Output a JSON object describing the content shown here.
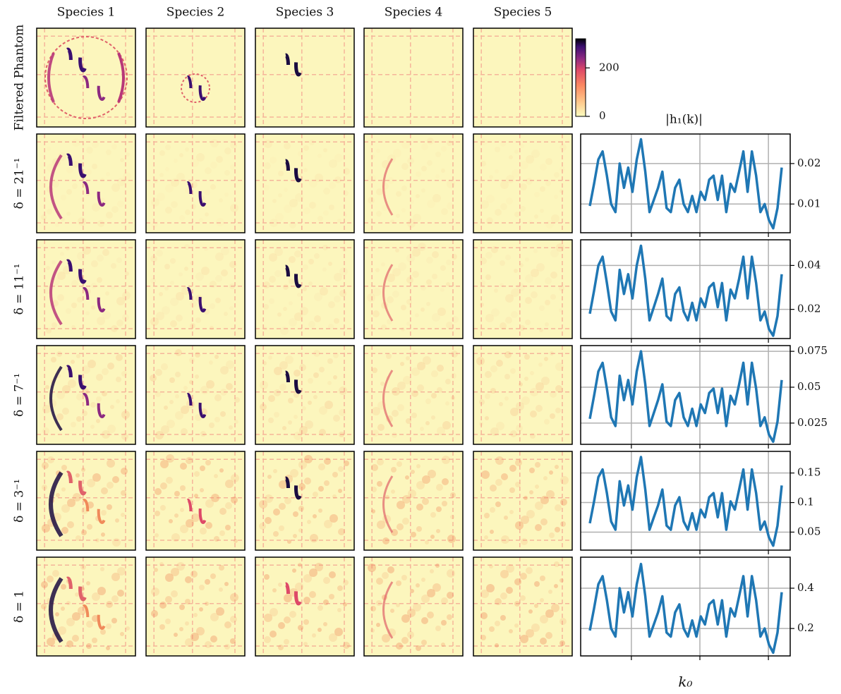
{
  "chart_data": [
    {
      "type": "heatmap",
      "columns": [
        "Species 1",
        "Species 2",
        "Species 3",
        "Species 4",
        "Species 5"
      ],
      "rows": [
        "Filtered Phantom",
        "δ = 21⁻¹",
        "δ = 11⁻¹",
        "δ = 7⁻¹",
        "δ = 3⁻¹",
        "δ = 1"
      ],
      "colorbar": {
        "lim": [
          0,
          320
        ],
        "ticks": [
          0,
          200
        ]
      }
    },
    {
      "type": "line",
      "title": "|h₁(k)|",
      "color": "#1f77b4",
      "grid": true,
      "ylim": [
        0.0029,
        0.0273
      ],
      "yticks": [
        0.01,
        0.02
      ],
      "values": [
        0.0095,
        0.015,
        0.021,
        0.023,
        0.017,
        0.01,
        0.008,
        0.02,
        0.014,
        0.019,
        0.013,
        0.021,
        0.026,
        0.018,
        0.008,
        0.011,
        0.014,
        0.018,
        0.009,
        0.008,
        0.014,
        0.016,
        0.01,
        0.008,
        0.012,
        0.008,
        0.013,
        0.011,
        0.016,
        0.017,
        0.011,
        0.017,
        0.008,
        0.015,
        0.013,
        0.018,
        0.023,
        0.013,
        0.023,
        0.017,
        0.008,
        0.01,
        0.006,
        0.004,
        0.009,
        0.019
      ]
    },
    {
      "type": "line",
      "color": "#1f77b4",
      "grid": true,
      "ylim": [
        0.0067,
        0.0517
      ],
      "yticks": [
        0.02,
        0.04
      ],
      "values": [
        0.018,
        0.0285,
        0.04,
        0.044,
        0.032,
        0.019,
        0.015,
        0.038,
        0.027,
        0.036,
        0.025,
        0.04,
        0.049,
        0.034,
        0.015,
        0.021,
        0.027,
        0.034,
        0.017,
        0.015,
        0.027,
        0.03,
        0.019,
        0.015,
        0.023,
        0.015,
        0.025,
        0.021,
        0.03,
        0.032,
        0.021,
        0.032,
        0.015,
        0.029,
        0.025,
        0.034,
        0.044,
        0.025,
        0.044,
        0.032,
        0.015,
        0.019,
        0.011,
        0.008,
        0.017,
        0.036
      ]
    },
    {
      "type": "line",
      "color": "#1f77b4",
      "grid": true,
      "ylim": [
        0.0102,
        0.079
      ],
      "yticks": [
        0.025,
        0.05,
        0.075
      ],
      "values": [
        0.028,
        0.044,
        0.061,
        0.067,
        0.049,
        0.029,
        0.023,
        0.058,
        0.041,
        0.055,
        0.038,
        0.061,
        0.075,
        0.052,
        0.023,
        0.032,
        0.041,
        0.052,
        0.026,
        0.023,
        0.041,
        0.046,
        0.029,
        0.023,
        0.035,
        0.023,
        0.038,
        0.032,
        0.046,
        0.049,
        0.032,
        0.049,
        0.023,
        0.044,
        0.038,
        0.052,
        0.067,
        0.038,
        0.067,
        0.049,
        0.023,
        0.029,
        0.017,
        0.012,
        0.026,
        0.055
      ]
    },
    {
      "type": "line",
      "color": "#1f77b4",
      "grid": true,
      "ylim": [
        0.0195,
        0.1866
      ],
      "yticks": [
        0.05,
        0.1,
        0.15
      ],
      "values": [
        0.065,
        0.102,
        0.143,
        0.156,
        0.116,
        0.068,
        0.054,
        0.136,
        0.095,
        0.129,
        0.088,
        0.143,
        0.177,
        0.122,
        0.054,
        0.075,
        0.095,
        0.122,
        0.061,
        0.054,
        0.095,
        0.109,
        0.068,
        0.054,
        0.082,
        0.054,
        0.088,
        0.075,
        0.109,
        0.116,
        0.075,
        0.116,
        0.054,
        0.102,
        0.088,
        0.122,
        0.156,
        0.088,
        0.156,
        0.116,
        0.054,
        0.068,
        0.041,
        0.027,
        0.061,
        0.129
      ]
    },
    {
      "type": "line",
      "xlabel": "k₀",
      "color": "#1f77b4",
      "grid": true,
      "ylim": [
        0.064,
        0.554
      ],
      "yticks": [
        0.2,
        0.4
      ],
      "values": [
        0.19,
        0.3,
        0.42,
        0.46,
        0.34,
        0.2,
        0.16,
        0.4,
        0.28,
        0.38,
        0.26,
        0.42,
        0.52,
        0.36,
        0.16,
        0.22,
        0.28,
        0.36,
        0.18,
        0.16,
        0.28,
        0.32,
        0.2,
        0.16,
        0.24,
        0.16,
        0.26,
        0.22,
        0.32,
        0.34,
        0.22,
        0.34,
        0.16,
        0.3,
        0.26,
        0.36,
        0.46,
        0.26,
        0.46,
        0.34,
        0.16,
        0.2,
        0.12,
        0.08,
        0.18,
        0.38
      ]
    }
  ]
}
